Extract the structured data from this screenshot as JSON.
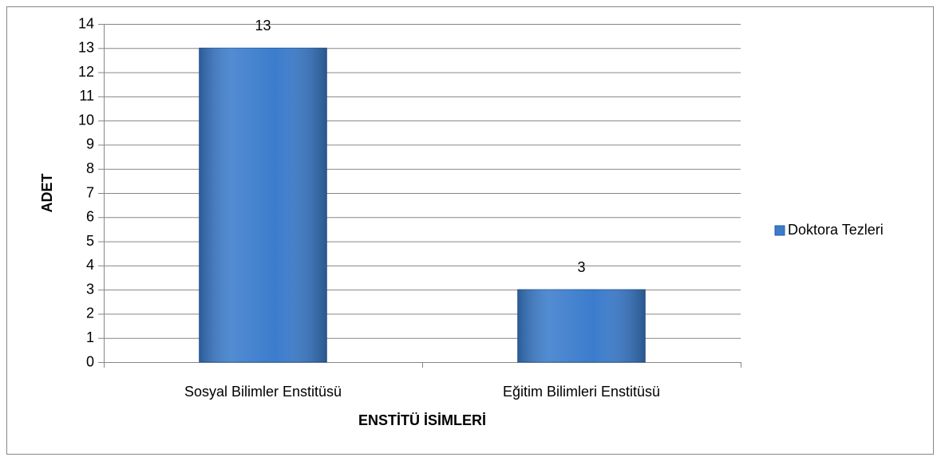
{
  "chart_data": {
    "type": "bar",
    "x_label": "ENSTİTÜ İSİMLERİ",
    "y_label": "ADET",
    "categories": [
      "Sosyal Bilimler Enstitüsü",
      "Eğitim Bilimleri Enstitüsü"
    ],
    "series": [
      {
        "name": "Doktora Tezleri",
        "color": "#3b7ccc",
        "values": [
          13,
          3
        ]
      }
    ],
    "ylim": [
      0,
      14
    ],
    "yticks": [
      0,
      1,
      2,
      3,
      4,
      5,
      6,
      7,
      8,
      9,
      10,
      11,
      12,
      13,
      14
    ],
    "grid": true,
    "legend": "right"
  }
}
